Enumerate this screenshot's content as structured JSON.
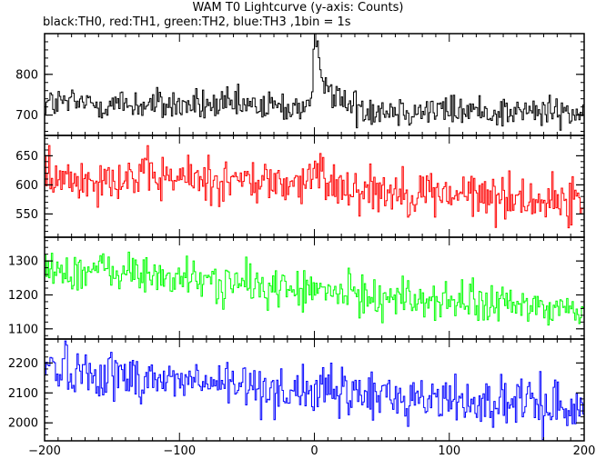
{
  "chart_data": {
    "type": "line",
    "title": "WAM T0 Lightcurve (y-axis: Counts)",
    "subtitle": "black:TH0, red:TH1, green:TH2, blue:TH3 ,1bin = 1s",
    "xlim": [
      -200,
      200
    ],
    "x_ticks": [
      -200,
      -100,
      0,
      100,
      200
    ],
    "x_tick_labels": [
      "−200",
      "−100",
      "0",
      "100",
      "200"
    ],
    "grid": false,
    "panels": [
      {
        "name": "TH0",
        "color": "#000000",
        "ylim": [
          650,
          900
        ],
        "y_ticks": [
          700,
          800
        ],
        "baseline": [
          [
            -200,
            730
          ],
          [
            200,
            705
          ]
        ],
        "noise_sd": 20,
        "peak": {
          "x": 0,
          "height": 170,
          "rise": 1.5,
          "decay": 9
        }
      },
      {
        "name": "TH1",
        "color": "#ff0000",
        "ylim": [
          510,
          685
        ],
        "y_ticks": [
          550,
          600,
          650
        ],
        "baseline": [
          [
            -200,
            605
          ],
          [
            -160,
            615
          ],
          [
            -80,
            610
          ],
          [
            0,
            600
          ],
          [
            60,
            590
          ],
          [
            200,
            570
          ]
        ],
        "noise_sd": 20,
        "peak": {
          "x": 0,
          "height": 25,
          "rise": 2,
          "decay": 10
        }
      },
      {
        "name": "TH2",
        "color": "#00ff00",
        "ylim": [
          1070,
          1370
        ],
        "y_ticks": [
          1100,
          1200,
          1300
        ],
        "baseline": [
          [
            -200,
            1275
          ],
          [
            -150,
            1270
          ],
          [
            -80,
            1240
          ],
          [
            0,
            1210
          ],
          [
            100,
            1180
          ],
          [
            200,
            1155
          ]
        ],
        "noise_sd": 30,
        "peak": {
          "x": 0,
          "height": 0,
          "rise": 1,
          "decay": 1
        }
      },
      {
        "name": "TH3",
        "color": "#0000ff",
        "ylim": [
          1940,
          2280
        ],
        "y_ticks": [
          2000,
          2100,
          2200
        ],
        "baseline": [
          [
            -200,
            2190
          ],
          [
            -150,
            2160
          ],
          [
            -50,
            2120
          ],
          [
            50,
            2090
          ],
          [
            200,
            2050
          ]
        ],
        "noise_sd": 40,
        "peak": {
          "x": 0,
          "height": 0,
          "rise": 1,
          "decay": 1
        }
      }
    ]
  }
}
